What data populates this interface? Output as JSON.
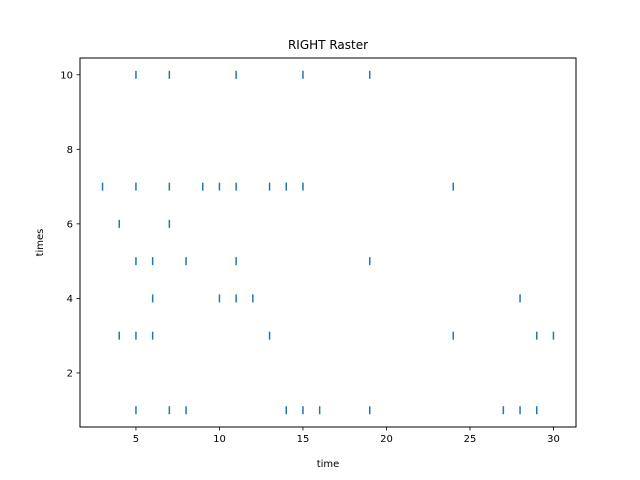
{
  "chart_data": {
    "type": "scatter",
    "marker": "vertical-line",
    "title": "RIGHT Raster",
    "xlabel": "time",
    "ylabel": "times",
    "xlim": [
      1.65,
      31.35
    ],
    "ylim": [
      0.55,
      10.45
    ],
    "xticks": [
      5,
      10,
      15,
      20,
      25,
      30
    ],
    "yticks": [
      2,
      4,
      6,
      8,
      10
    ],
    "grid": false,
    "color": "#1f77b4",
    "rows": [
      {
        "y": 1,
        "x": [
          5,
          7,
          8,
          14,
          15,
          16,
          19,
          27,
          28,
          29
        ]
      },
      {
        "y": 3,
        "x": [
          4,
          5,
          6,
          13,
          24,
          29,
          30
        ]
      },
      {
        "y": 4,
        "x": [
          6,
          10,
          11,
          12,
          28
        ]
      },
      {
        "y": 5,
        "x": [
          5,
          6,
          8,
          11,
          19
        ]
      },
      {
        "y": 6,
        "x": [
          4,
          7
        ]
      },
      {
        "y": 7,
        "x": [
          3,
          5,
          7,
          9,
          10,
          11,
          13,
          14,
          15,
          24
        ]
      },
      {
        "y": 10,
        "x": [
          5,
          7,
          11,
          15,
          19
        ]
      }
    ]
  }
}
